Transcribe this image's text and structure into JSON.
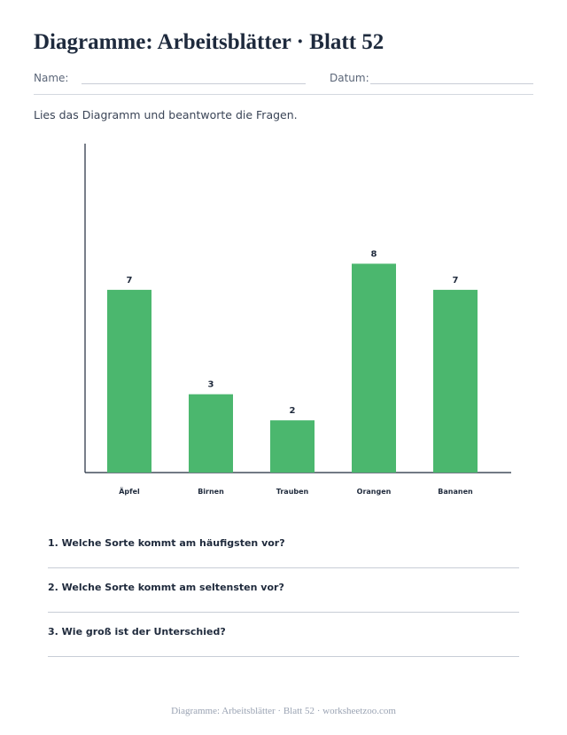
{
  "title": "Diagramme: Arbeitsblätter · Blatt 52",
  "form": {
    "name_label": "Name:",
    "date_label": "Datum:"
  },
  "instructions": "Lies das Diagramm und beantworte die Fragen.",
  "chart_data": {
    "type": "bar",
    "categories": [
      "Äpfel",
      "Birnen",
      "Trauben",
      "Orangen",
      "Bananen"
    ],
    "values": [
      7,
      3,
      2,
      8,
      7
    ],
    "title": "",
    "xlabel": "",
    "ylabel": "",
    "ylim": [
      0,
      12.6
    ],
    "grid": false,
    "data_labels": true,
    "bar_color": "#4bb76e"
  },
  "questions": [
    {
      "text": "1. Welche Sorte kommt am häufigsten vor?"
    },
    {
      "text": "2. Welche Sorte kommt am seltensten vor?"
    },
    {
      "text": "3. Wie groß ist der Unterschied?"
    }
  ],
  "footer": "Diagramme: Arbeitsblätter · Blatt 52 · worksheetzoo.com"
}
